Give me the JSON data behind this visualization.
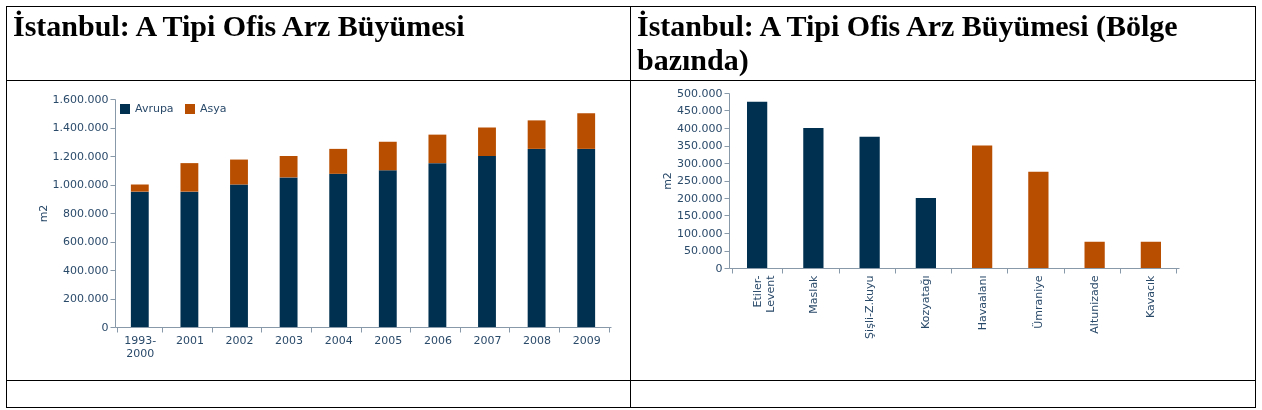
{
  "chart_data": [
    {
      "type": "bar",
      "title": "İstanbul: A Tipi Ofis Arz Büyümesi",
      "ylabel": "m2",
      "stacked": true,
      "legend": "top left",
      "grid": false,
      "categories": [
        "1993-\n2000",
        "2001",
        "2002",
        "2003",
        "2004",
        "2005",
        "2006",
        "2007",
        "2008",
        "2009"
      ],
      "series": [
        {
          "name": "Avrupa",
          "color": "#003050",
          "values": [
            950000,
            950000,
            1000000,
            1050000,
            1075000,
            1100000,
            1150000,
            1200000,
            1250000,
            1250000
          ]
        },
        {
          "name": "Asya",
          "color": "#b84e00",
          "values": [
            50000,
            200000,
            175000,
            150000,
            175000,
            200000,
            200000,
            200000,
            200000,
            250000
          ]
        }
      ],
      "ylim": [
        0,
        1600000
      ],
      "yticks": [
        0,
        {
          "value": 200000,
          "label": "200.000"
        },
        {
          "value": 400000,
          "label": "400.000"
        },
        {
          "value": 600000,
          "label": "600.000"
        },
        {
          "value": 800000,
          "label": "800.000"
        },
        {
          "value": 1000000,
          "label": "1.000.000"
        },
        {
          "value": 1200000,
          "label": "1.200.000"
        },
        {
          "value": 1400000,
          "label": "1.400.000"
        },
        {
          "value": 1600000,
          "label": "1.600.000"
        }
      ]
    },
    {
      "type": "bar",
      "title": "İstanbul: A Tipi Ofis Arz Büyümesi (Bölge bazında)",
      "ylabel": "m2",
      "grid": false,
      "categories": [
        "Etiler-\nLevent",
        "Maslak",
        "Şişli-Z.kuyu",
        "Kozyatağı",
        "Havaalanı",
        "Ümraniye",
        "Altunizade",
        "Kavacık"
      ],
      "values": [
        475000,
        400000,
        375000,
        200000,
        350000,
        275000,
        75000,
        75000
      ],
      "colors": [
        "#003050",
        "#003050",
        "#003050",
        "#003050",
        "#b84e00",
        "#b84e00",
        "#b84e00",
        "#b84e00"
      ],
      "ylim": [
        0,
        500000
      ],
      "yticks": [
        0,
        {
          "value": 50000,
          "label": "50.000"
        },
        {
          "value": 100000,
          "label": "100.000"
        },
        {
          "value": 150000,
          "label": "150.000"
        },
        {
          "value": 200000,
          "label": "200.000"
        },
        {
          "value": 250000,
          "label": "250.000"
        },
        {
          "value": 300000,
          "label": "300.000"
        },
        {
          "value": 350000,
          "label": "350.000"
        },
        {
          "value": 400000,
          "label": "400.000"
        },
        {
          "value": 450000,
          "label": "450.000"
        },
        {
          "value": 500000,
          "label": "500.000"
        }
      ]
    }
  ]
}
